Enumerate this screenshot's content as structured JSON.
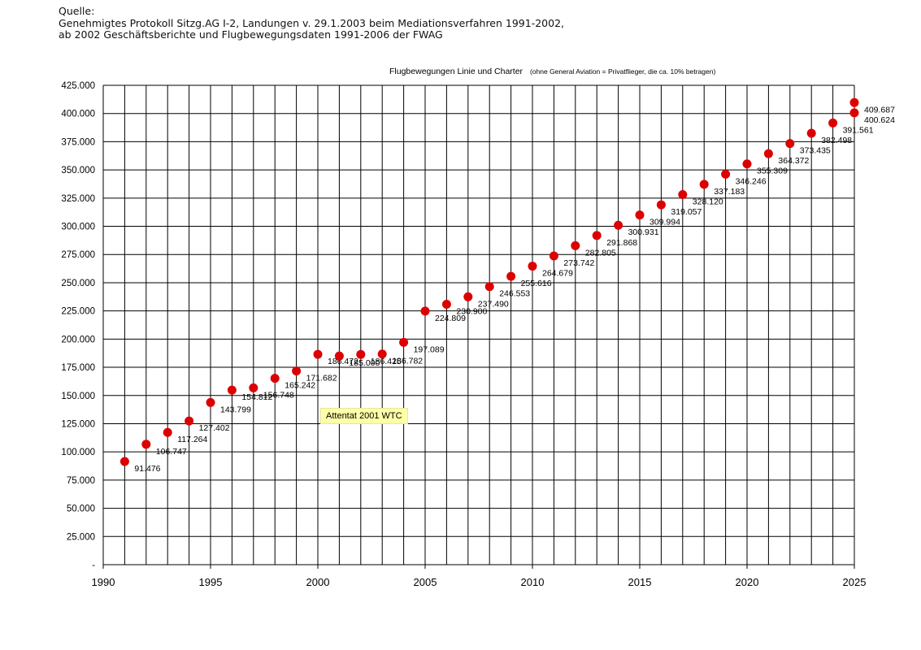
{
  "source": {
    "heading": "Quelle:",
    "line1": "Genehmigtes Protokoll Sitzg.AG I-2, Landungen v. 29.1.2003 beim Mediationsverfahren 1991-2002,",
    "line2": "ab 2002 Geschäftsberichte und Flugbewegungsdaten 1991-2006 der FWAG"
  },
  "chart_data": {
    "type": "scatter",
    "title": "Flugbewegungen Linie und Charter",
    "subtitle": "(ohne General Aviation = Privatflieger, die ca. 10% betragen)",
    "xlim": [
      1990,
      2025
    ],
    "ylim": [
      0,
      425000
    ],
    "x_ticks": [
      1990,
      1995,
      2000,
      2005,
      2010,
      2015,
      2020,
      2025
    ],
    "x_tick_labels": [
      "1990",
      "1995",
      "2000",
      "2005",
      "2010",
      "2015",
      "2020",
      "2025"
    ],
    "y_tick_labels": [
      "-",
      "25.000",
      "50.000",
      "75.000",
      "100.000",
      "125.000",
      "150.000",
      "175.000",
      "200.000",
      "225.000",
      "250.000",
      "275.000",
      "300.000",
      "325.000",
      "350.000",
      "375.000",
      "400.000",
      "425.000"
    ],
    "grid": true,
    "marker_color": "#dd0000",
    "points": [
      {
        "x": 1991,
        "y": 91476,
        "label": "91.476"
      },
      {
        "x": 1992,
        "y": 106747,
        "label": "106.747"
      },
      {
        "x": 1993,
        "y": 117264,
        "label": "117.264"
      },
      {
        "x": 1994,
        "y": 127402,
        "label": "127.402"
      },
      {
        "x": 1995,
        "y": 143799,
        "label": "143.799"
      },
      {
        "x": 1996,
        "y": 154812,
        "label": "154.812"
      },
      {
        "x": 1997,
        "y": 156748,
        "label": "156.748"
      },
      {
        "x": 1998,
        "y": 165242,
        "label": "165.242"
      },
      {
        "x": 1999,
        "y": 171682,
        "label": "171.682"
      },
      {
        "x": 2000,
        "y": 186472,
        "label": "186.472"
      },
      {
        "x": 2001,
        "y": 185000,
        "label": "185.000"
      },
      {
        "x": 2002,
        "y": 186425,
        "label": "186.425"
      },
      {
        "x": 2003,
        "y": 186782,
        "label": "186.782"
      },
      {
        "x": 2004,
        "y": 197089,
        "label": "197.089"
      },
      {
        "x": 2005,
        "y": 224809,
        "label": "224.809"
      },
      {
        "x": 2006,
        "y": 230900,
        "label": "230.900"
      },
      {
        "x": 2007,
        "y": 237490,
        "label": "237.490"
      },
      {
        "x": 2008,
        "y": 246553,
        "label": "246.553"
      },
      {
        "x": 2009,
        "y": 255616,
        "label": "255.616"
      },
      {
        "x": 2010,
        "y": 264679,
        "label": "264.679"
      },
      {
        "x": 2011,
        "y": 273742,
        "label": "273.742"
      },
      {
        "x": 2012,
        "y": 282805,
        "label": "282.805"
      },
      {
        "x": 2013,
        "y": 291868,
        "label": "291.868"
      },
      {
        "x": 2014,
        "y": 300931,
        "label": "300.931"
      },
      {
        "x": 2015,
        "y": 309994,
        "label": "309.994"
      },
      {
        "x": 2016,
        "y": 319057,
        "label": "319.057"
      },
      {
        "x": 2017,
        "y": 328120,
        "label": "328.120"
      },
      {
        "x": 2018,
        "y": 337183,
        "label": "337.183"
      },
      {
        "x": 2019,
        "y": 346246,
        "label": "346.246"
      },
      {
        "x": 2020,
        "y": 355309,
        "label": "355.309"
      },
      {
        "x": 2021,
        "y": 364372,
        "label": "364.372"
      },
      {
        "x": 2022,
        "y": 373435,
        "label": "373.435"
      },
      {
        "x": 2023,
        "y": 382498,
        "label": "382.498"
      },
      {
        "x": 2024,
        "y": 391561,
        "label": "391.561"
      },
      {
        "x": 2025,
        "y": 400624,
        "label": "400.624"
      },
      {
        "x": 2025,
        "y": 409687,
        "label": "409.687"
      }
    ],
    "annotations": [
      {
        "text": "Attentat 2001 WTC"
      }
    ]
  }
}
